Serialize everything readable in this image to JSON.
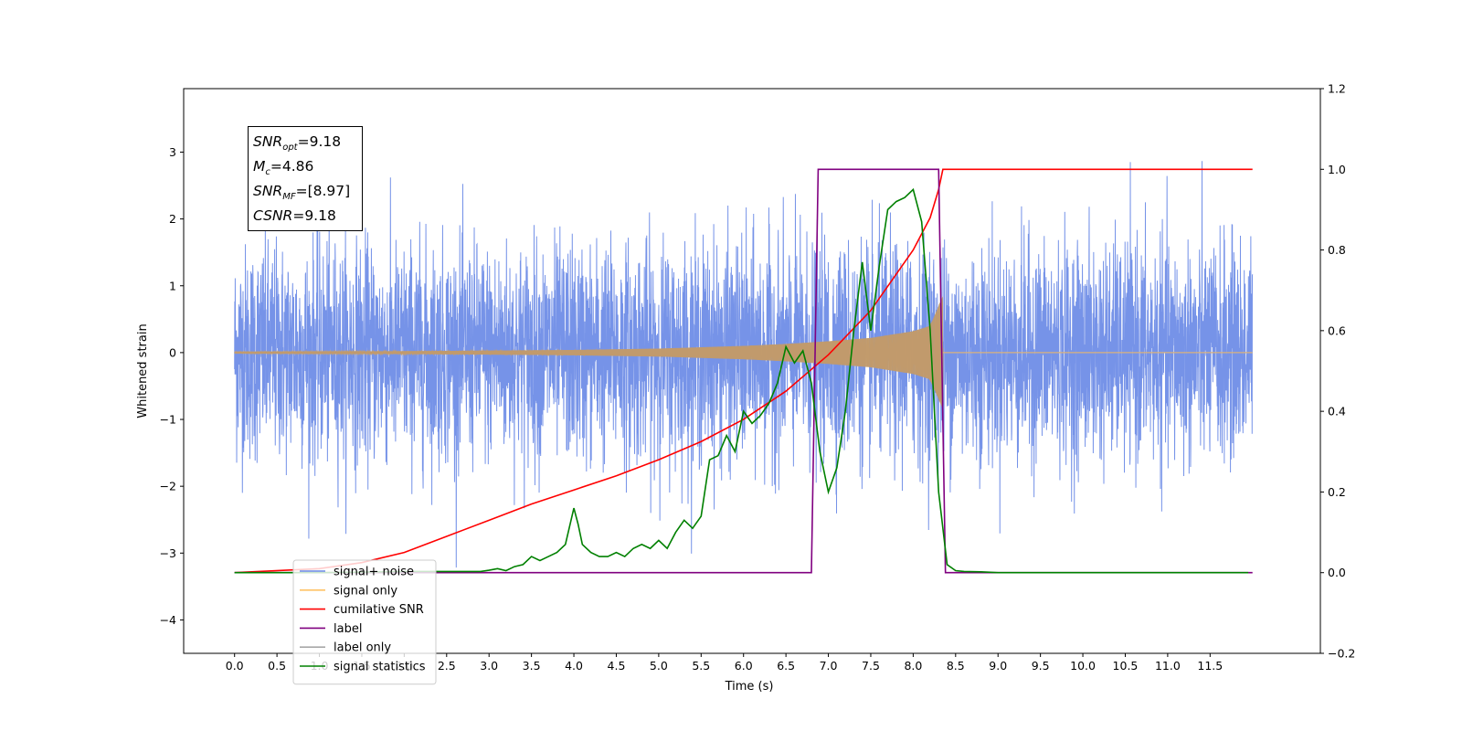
{
  "chart_data": {
    "type": "line",
    "xlabel": "Time (s)",
    "ylabel": "Whitened strain",
    "xlim": [
      -0.6,
      12.8
    ],
    "ylim": [
      -4.5,
      3.95
    ],
    "ylim_right": [
      -0.2,
      1.2
    ],
    "xticks": [
      "0.0",
      "0.5",
      "1.0",
      "1.5",
      "2.0",
      "2.5",
      "3.0",
      "3.5",
      "4.0",
      "4.5",
      "5.0",
      "5.5",
      "6.0",
      "6.5",
      "7.0",
      "7.5",
      "8.0",
      "8.5",
      "9.0",
      "9.5",
      "10.0",
      "10.5",
      "11.0",
      "11.5"
    ],
    "yticks": [
      "−4",
      "−3",
      "−2",
      "−1",
      "0",
      "1",
      "2",
      "3"
    ],
    "yticks_right": [
      "−0.2",
      "0.0",
      "0.2",
      "0.4",
      "0.6",
      "0.8",
      "1.0",
      "1.2"
    ],
    "annotation": {
      "snr_opt_sym": "SNR",
      "snr_opt_sub": "opt",
      "snr_opt_val": "=9.18",
      "mc_sym": "M",
      "mc_sub": "c",
      "mc_val": "=4.86",
      "snr_mf_sym": "SNR",
      "snr_mf_sub": "MF",
      "snr_mf_val": "=[8.97]",
      "csnr_sym": "CSNR",
      "csnr_val": "=9.18"
    },
    "legend": {
      "position": "lower-left",
      "entries": [
        {
          "label": "signal+ noise",
          "color": "#6a8ae6"
        },
        {
          "label": "signal only",
          "color": "#ffc266"
        },
        {
          "label": "cumilative SNR",
          "color": "#ff0000"
        },
        {
          "label": "label",
          "color": "#800080"
        },
        {
          "label": "label only",
          "color": "#a8a8a8"
        },
        {
          "label": "signal statistics",
          "color": "#008000"
        }
      ]
    },
    "series": [
      {
        "name": "signal+ noise",
        "axis": "left",
        "color": "#6a8ae6",
        "x_range": [
          0.0,
          12.0
        ],
        "noise_std": 0.8,
        "y_range": [
          -4.1,
          3.55
        ]
      },
      {
        "name": "signal only",
        "axis": "left",
        "color": "#ffc266",
        "x": [
          0.0,
          1.0,
          2.0,
          3.0,
          4.0,
          5.0,
          6.0,
          6.5,
          7.0,
          7.5,
          8.0,
          8.2,
          8.35,
          8.36,
          12.0
        ],
        "amplitude": [
          0.01,
          0.015,
          0.02,
          0.03,
          0.04,
          0.06,
          0.1,
          0.13,
          0.17,
          0.22,
          0.32,
          0.4,
          0.85,
          0.0,
          0.0
        ]
      },
      {
        "name": "cumilative SNR",
        "axis": "right",
        "color": "#ff0000",
        "x": [
          0.0,
          1.0,
          1.5,
          2.0,
          2.5,
          3.0,
          3.5,
          4.0,
          4.5,
          5.0,
          5.5,
          6.0,
          6.5,
          7.0,
          7.5,
          8.0,
          8.2,
          8.3,
          8.35,
          12.0
        ],
        "y": [
          0.0,
          0.01,
          0.025,
          0.05,
          0.09,
          0.13,
          0.17,
          0.205,
          0.24,
          0.28,
          0.325,
          0.38,
          0.45,
          0.54,
          0.65,
          0.8,
          0.88,
          0.95,
          1.0,
          1.0
        ]
      },
      {
        "name": "label",
        "axis": "right",
        "color": "#800080",
        "x": [
          0.0,
          6.8,
          6.88,
          8.3,
          8.38,
          12.0
        ],
        "y": [
          0.0,
          0.0,
          1.0,
          1.0,
          0.0,
          0.0
        ]
      },
      {
        "name": "signal statistics",
        "axis": "right",
        "color": "#008000",
        "x": [
          0.0,
          1.0,
          2.0,
          2.9,
          3.0,
          3.1,
          3.2,
          3.3,
          3.4,
          3.5,
          3.6,
          3.7,
          3.8,
          3.9,
          4.0,
          4.05,
          4.1,
          4.2,
          4.3,
          4.4,
          4.5,
          4.6,
          4.7,
          4.8,
          4.9,
          5.0,
          5.1,
          5.2,
          5.3,
          5.4,
          5.5,
          5.6,
          5.7,
          5.8,
          5.9,
          6.0,
          6.1,
          6.2,
          6.3,
          6.4,
          6.5,
          6.6,
          6.7,
          6.8,
          6.9,
          7.0,
          7.1,
          7.2,
          7.3,
          7.4,
          7.5,
          7.6,
          7.7,
          7.8,
          7.9,
          8.0,
          8.1,
          8.2,
          8.3,
          8.4,
          8.5,
          8.6,
          8.8,
          9.0,
          10.0,
          11.0,
          11.95
        ],
        "y": [
          0.0,
          0.0,
          0.003,
          0.003,
          0.006,
          0.01,
          0.005,
          0.015,
          0.02,
          0.04,
          0.03,
          0.04,
          0.05,
          0.07,
          0.16,
          0.12,
          0.07,
          0.05,
          0.04,
          0.04,
          0.05,
          0.04,
          0.06,
          0.07,
          0.06,
          0.08,
          0.06,
          0.1,
          0.13,
          0.11,
          0.14,
          0.28,
          0.29,
          0.34,
          0.3,
          0.4,
          0.37,
          0.39,
          0.42,
          0.47,
          0.56,
          0.52,
          0.55,
          0.47,
          0.3,
          0.2,
          0.26,
          0.4,
          0.6,
          0.77,
          0.6,
          0.76,
          0.9,
          0.92,
          0.93,
          0.95,
          0.87,
          0.6,
          0.2,
          0.02,
          0.005,
          0.003,
          0.002,
          0.0,
          0.0,
          0.0,
          0.0
        ]
      }
    ]
  }
}
